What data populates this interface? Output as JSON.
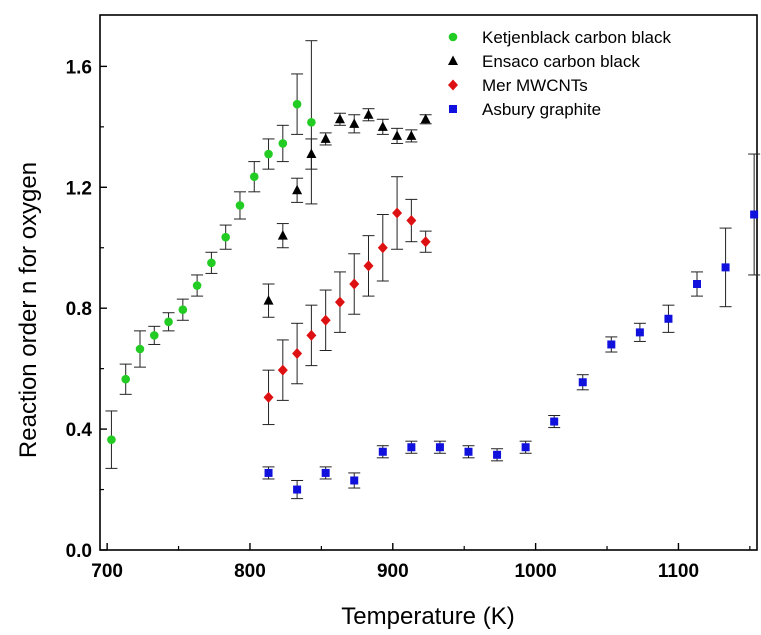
{
  "chart_data": {
    "type": "scatter",
    "title": "",
    "xlabel": "Temperature (K)",
    "ylabel": "Reaction order n for oxygen",
    "xlim": [
      695,
      1155
    ],
    "ylim": [
      0,
      1.77
    ],
    "xticks": [
      700,
      800,
      900,
      1000,
      1100
    ],
    "yticks": [
      0.0,
      0.4,
      0.8,
      1.2,
      1.6
    ],
    "xtick_labels": [
      "700",
      "800",
      "900",
      "1000",
      "1100"
    ],
    "ytick_labels": [
      "0.0",
      "0.4",
      "0.8",
      "1.2",
      "1.6"
    ],
    "grid": false,
    "legend_position": "top-right",
    "series": [
      {
        "name": "Ketjenblack carbon black",
        "marker": "circle",
        "color": "#22cc22",
        "points": [
          {
            "x": 703,
            "y": 0.365,
            "err": 0.095
          },
          {
            "x": 713,
            "y": 0.565,
            "err": 0.05
          },
          {
            "x": 723,
            "y": 0.665,
            "err": 0.06
          },
          {
            "x": 733,
            "y": 0.71,
            "err": 0.03
          },
          {
            "x": 743,
            "y": 0.755,
            "err": 0.03
          },
          {
            "x": 753,
            "y": 0.795,
            "err": 0.035
          },
          {
            "x": 763,
            "y": 0.875,
            "err": 0.035
          },
          {
            "x": 773,
            "y": 0.95,
            "err": 0.035
          },
          {
            "x": 783,
            "y": 1.035,
            "err": 0.04
          },
          {
            "x": 793,
            "y": 1.14,
            "err": 0.045
          },
          {
            "x": 803,
            "y": 1.235,
            "err": 0.05
          },
          {
            "x": 813,
            "y": 1.31,
            "err": 0.05
          },
          {
            "x": 823,
            "y": 1.345,
            "err": 0.06
          },
          {
            "x": 833,
            "y": 1.475,
            "err": 0.1
          },
          {
            "x": 843,
            "y": 1.415,
            "err": 0.27
          }
        ]
      },
      {
        "name": "Ensaco carbon black",
        "marker": "triangle",
        "color": "#000000",
        "points": [
          {
            "x": 813,
            "y": 0.825,
            "err": 0.055
          },
          {
            "x": 823,
            "y": 1.04,
            "err": 0.04
          },
          {
            "x": 833,
            "y": 1.19,
            "err": 0.04
          },
          {
            "x": 843,
            "y": 1.31,
            "err": 0.05
          },
          {
            "x": 853,
            "y": 1.36,
            "err": 0.02
          },
          {
            "x": 863,
            "y": 1.425,
            "err": 0.02
          },
          {
            "x": 873,
            "y": 1.41,
            "err": 0.03
          },
          {
            "x": 883,
            "y": 1.44,
            "err": 0.02
          },
          {
            "x": 893,
            "y": 1.4,
            "err": 0.025
          },
          {
            "x": 903,
            "y": 1.37,
            "err": 0.025
          },
          {
            "x": 913,
            "y": 1.37,
            "err": 0.02
          },
          {
            "x": 923,
            "y": 1.425,
            "err": 0.015
          }
        ]
      },
      {
        "name": "Mer MWCNTs",
        "marker": "diamond",
        "color": "#dd1111",
        "points": [
          {
            "x": 813,
            "y": 0.505,
            "err": 0.09
          },
          {
            "x": 823,
            "y": 0.595,
            "err": 0.1
          },
          {
            "x": 833,
            "y": 0.65,
            "err": 0.1
          },
          {
            "x": 843,
            "y": 0.71,
            "err": 0.1
          },
          {
            "x": 853,
            "y": 0.76,
            "err": 0.1
          },
          {
            "x": 863,
            "y": 0.82,
            "err": 0.1
          },
          {
            "x": 873,
            "y": 0.88,
            "err": 0.1
          },
          {
            "x": 883,
            "y": 0.94,
            "err": 0.1
          },
          {
            "x": 893,
            "y": 1.0,
            "err": 0.11
          },
          {
            "x": 903,
            "y": 1.115,
            "err": 0.12
          },
          {
            "x": 913,
            "y": 1.09,
            "err": 0.07
          },
          {
            "x": 923,
            "y": 1.02,
            "err": 0.035
          }
        ]
      },
      {
        "name": "Asbury graphite",
        "marker": "square",
        "color": "#1111dd",
        "points": [
          {
            "x": 813,
            "y": 0.255,
            "err": 0.02
          },
          {
            "x": 833,
            "y": 0.2,
            "err": 0.03
          },
          {
            "x": 853,
            "y": 0.255,
            "err": 0.02
          },
          {
            "x": 873,
            "y": 0.23,
            "err": 0.025
          },
          {
            "x": 893,
            "y": 0.325,
            "err": 0.02
          },
          {
            "x": 913,
            "y": 0.34,
            "err": 0.02
          },
          {
            "x": 933,
            "y": 0.34,
            "err": 0.02
          },
          {
            "x": 953,
            "y": 0.325,
            "err": 0.02
          },
          {
            "x": 973,
            "y": 0.315,
            "err": 0.02
          },
          {
            "x": 993,
            "y": 0.34,
            "err": 0.02
          },
          {
            "x": 1013,
            "y": 0.425,
            "err": 0.02
          },
          {
            "x": 1033,
            "y": 0.555,
            "err": 0.025
          },
          {
            "x": 1053,
            "y": 0.68,
            "err": 0.025
          },
          {
            "x": 1073,
            "y": 0.72,
            "err": 0.03
          },
          {
            "x": 1093,
            "y": 0.765,
            "err": 0.045
          },
          {
            "x": 1113,
            "y": 0.88,
            "err": 0.04
          },
          {
            "x": 1133,
            "y": 0.935,
            "err": 0.13
          },
          {
            "x": 1153,
            "y": 1.11,
            "err": 0.2
          }
        ]
      }
    ]
  }
}
